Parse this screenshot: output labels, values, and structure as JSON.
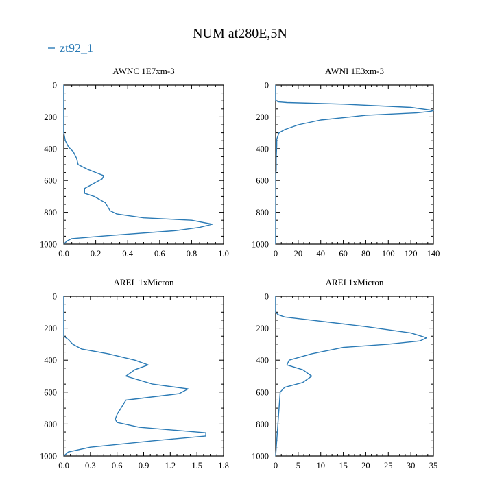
{
  "figure": {
    "title": "NUM at280E,5N",
    "legend": [
      {
        "label": "zt92_1",
        "color": "#2a7ab5"
      }
    ]
  },
  "chart_data": [
    {
      "type": "line",
      "title": "AWNC  1E7xm-3",
      "series": [
        {
          "name": "zt92_1",
          "color": "#2a7ab5",
          "x": [
            0,
            0,
            0.01,
            0.03,
            0.06,
            0.08,
            0.09,
            0.15,
            0.25,
            0.24,
            0.13,
            0.13,
            0.19,
            0.26,
            0.29,
            0.33,
            0.5,
            0.8,
            0.93,
            0.85,
            0.7,
            0.3,
            0.05,
            0.02,
            0
          ],
          "y": [
            0,
            300,
            350,
            390,
            420,
            460,
            500,
            530,
            570,
            590,
            650,
            680,
            700,
            740,
            790,
            810,
            835,
            850,
            875,
            895,
            915,
            945,
            965,
            980,
            1000
          ]
        }
      ],
      "xlim": [
        0,
        1.0
      ],
      "ylim": [
        1000,
        0
      ],
      "xticks": [
        0,
        0.2,
        0.4,
        0.6,
        0.8,
        1.0
      ],
      "xtick_labels": [
        "0.0",
        "0.2",
        "0.4",
        "0.6",
        "0.8",
        "1.0"
      ],
      "yticks": [
        0,
        200,
        400,
        600,
        800,
        1000
      ],
      "ytick_labels": [
        "0",
        "200",
        "400",
        "600",
        "800",
        "1000"
      ]
    },
    {
      "type": "line",
      "title": "AWNI  1E3xm-3",
      "series": [
        {
          "name": "zt92_1",
          "color": "#2a7ab5",
          "x": [
            0,
            0,
            2,
            10,
            60,
            120,
            140,
            138,
            125,
            80,
            40,
            20,
            8,
            3,
            1,
            1,
            0.5,
            0.5,
            0.2,
            0
          ],
          "y": [
            0,
            95,
            105,
            110,
            120,
            140,
            160,
            165,
            175,
            190,
            220,
            250,
            280,
            300,
            340,
            380,
            460,
            530,
            560,
            1000
          ]
        }
      ],
      "xlim": [
        0,
        140
      ],
      "ylim": [
        1000,
        0
      ],
      "xticks": [
        0,
        20,
        40,
        60,
        80,
        100,
        120,
        140
      ],
      "xtick_labels": [
        "0",
        "20",
        "40",
        "60",
        "80",
        "100",
        "120",
        "140"
      ],
      "yticks": [
        0,
        200,
        400,
        600,
        800,
        1000
      ],
      "ytick_labels": [
        "0",
        "200",
        "400",
        "600",
        "800",
        "1000"
      ]
    },
    {
      "type": "line",
      "title": "AREL  1xMicron",
      "series": [
        {
          "name": "zt92_1",
          "color": "#2a7ab5",
          "x": [
            0,
            0,
            0.05,
            0.1,
            0.2,
            0.5,
            0.8,
            0.95,
            0.8,
            0.7,
            1.0,
            1.4,
            1.3,
            0.7,
            0.6,
            0.58,
            0.6,
            0.85,
            1.6,
            1.6,
            1.0,
            0.3,
            0.05,
            0
          ],
          "y": [
            0,
            250,
            270,
            300,
            330,
            360,
            400,
            430,
            460,
            500,
            550,
            580,
            610,
            650,
            740,
            770,
            790,
            820,
            855,
            875,
            905,
            945,
            975,
            1000
          ]
        }
      ],
      "xlim": [
        0,
        1.8
      ],
      "ylim": [
        1000,
        0
      ],
      "xticks": [
        0,
        0.3,
        0.6,
        0.9,
        1.2,
        1.5,
        1.8
      ],
      "xtick_labels": [
        "0.0",
        "0.3",
        "0.6",
        "0.9",
        "1.2",
        "1.5",
        "1.8"
      ],
      "yticks": [
        0,
        200,
        400,
        600,
        800,
        1000
      ],
      "ytick_labels": [
        "0",
        "200",
        "400",
        "600",
        "800",
        "1000"
      ]
    },
    {
      "type": "line",
      "title": "AREI  1xMicron",
      "series": [
        {
          "name": "zt92_1",
          "color": "#2a7ab5",
          "x": [
            0,
            0,
            0.5,
            2,
            8,
            20,
            30,
            33.5,
            32,
            25,
            15,
            8,
            3,
            2.5,
            6,
            8,
            6,
            2,
            1,
            0
          ],
          "y": [
            0,
            100,
            115,
            130,
            150,
            190,
            230,
            260,
            280,
            300,
            320,
            360,
            400,
            430,
            460,
            500,
            540,
            570,
            600,
            1000
          ]
        }
      ],
      "xlim": [
        0,
        35
      ],
      "ylim": [
        1000,
        0
      ],
      "xticks": [
        0,
        5,
        10,
        15,
        20,
        25,
        30,
        35
      ],
      "xtick_labels": [
        "0",
        "5",
        "10",
        "15",
        "20",
        "25",
        "30",
        "35"
      ],
      "yticks": [
        0,
        200,
        400,
        600,
        800,
        1000
      ],
      "ytick_labels": [
        "0",
        "200",
        "400",
        "600",
        "800",
        "1000"
      ]
    }
  ]
}
